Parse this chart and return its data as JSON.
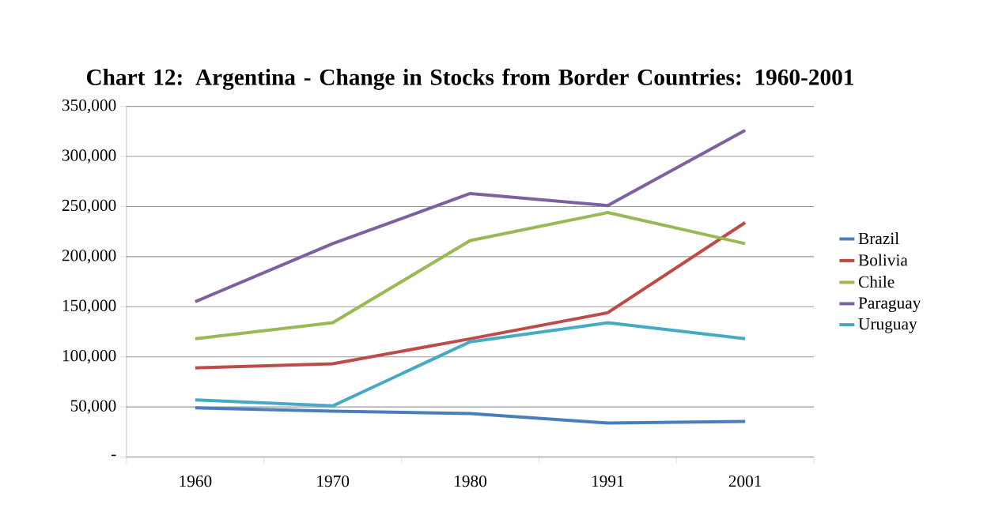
{
  "chart_data": {
    "type": "line",
    "title": "Chart 12: Argentina - Change in Stocks from Border Countries: 1960-2001",
    "categories": [
      "1960",
      "1970",
      "1980",
      "1991",
      "2001"
    ],
    "series": [
      {
        "name": "Brazil",
        "color": "#4a7ebb",
        "values": [
          49000,
          45700,
          43400,
          33900,
          35500
        ]
      },
      {
        "name": "Bolivia",
        "color": "#be4b48",
        "values": [
          89000,
          93000,
          118000,
          144000,
          234000
        ]
      },
      {
        "name": "Chile",
        "color": "#98b954",
        "values": [
          118000,
          134000,
          216000,
          244000,
          213000
        ]
      },
      {
        "name": "Paraguay",
        "color": "#7d60a0",
        "values": [
          155000,
          213000,
          263000,
          251000,
          326000
        ]
      },
      {
        "name": "Uruguay",
        "color": "#46aac5",
        "values": [
          57000,
          51000,
          115000,
          134000,
          118000
        ]
      }
    ],
    "ylim": [
      0,
      350000
    ],
    "yticks": [
      {
        "value": 0,
        "label": "-"
      },
      {
        "value": 50000,
        "label": "50,000"
      },
      {
        "value": 100000,
        "label": "100,000"
      },
      {
        "value": 150000,
        "label": "150,000"
      },
      {
        "value": 200000,
        "label": "200,000"
      },
      {
        "value": 250000,
        "label": "250,000"
      },
      {
        "value": 300000,
        "label": "300,000"
      },
      {
        "value": 350000,
        "label": "350,000"
      }
    ],
    "grid": "y",
    "legend": "right",
    "marker": "none",
    "line_style": "solid"
  }
}
